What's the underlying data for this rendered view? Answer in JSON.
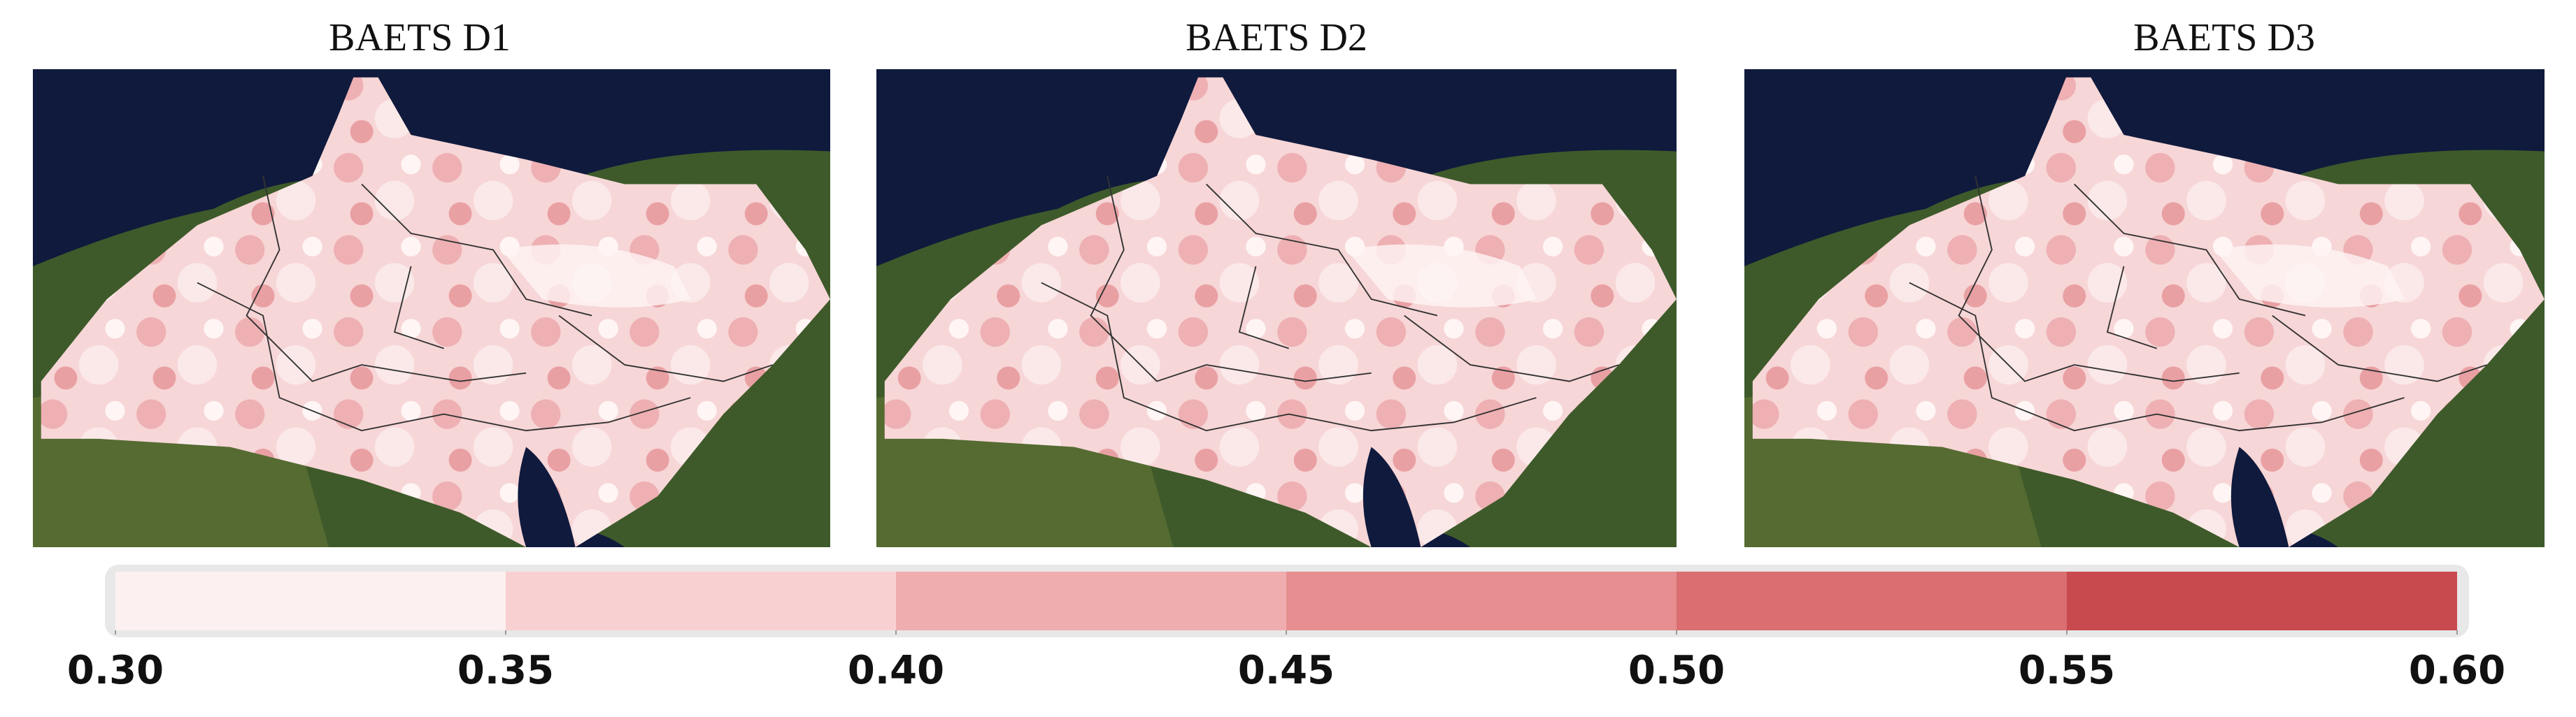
{
  "panels": [
    {
      "title": "BAETS D1"
    },
    {
      "title": "BAETS D2"
    },
    {
      "title": "BAETS D3"
    }
  ],
  "colorbar": {
    "ticks": [
      {
        "value": 0.3,
        "label": "0.30"
      },
      {
        "value": 0.35,
        "label": "0.35"
      },
      {
        "value": 0.4,
        "label": "0.40"
      },
      {
        "value": 0.45,
        "label": "0.45"
      },
      {
        "value": 0.5,
        "label": "0.50"
      },
      {
        "value": 0.55,
        "label": "0.55"
      },
      {
        "value": 0.6,
        "label": "0.60"
      }
    ],
    "colors": [
      "#fdf0f0",
      "#f8d0d1",
      "#f0adaf",
      "#e68e90",
      "#da6e71",
      "#c94a4e"
    ]
  }
}
